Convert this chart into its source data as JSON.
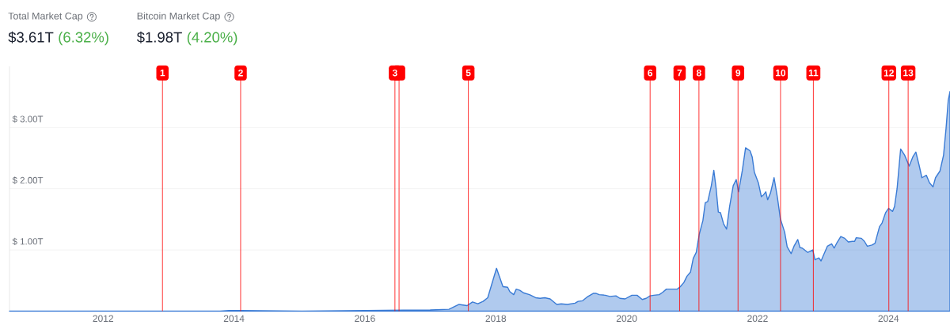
{
  "chart_data": {
    "type": "area",
    "annotations": [
      "Total Market Cap",
      "$3.61T",
      "(6.32%)",
      "Bitcoin Market Cap",
      "$1.98T",
      "(4.20%)"
    ],
    "x": [
      "2010-07-28",
      "2013-10-15",
      "2013-12-04",
      "2014-02-10",
      "2015-01-15",
      "2016-01-01",
      "2016-12-31",
      "2017-04-15",
      "2017-06-10",
      "2017-07-25",
      "2017-08-24",
      "2017-09-23",
      "2017-10-22",
      "2017-11-17",
      "2018-01-05",
      "2018-02-10",
      "2018-03-08",
      "2018-03-20",
      "2018-04-11",
      "2018-04-25",
      "2018-05-15",
      "2018-06-04",
      "2018-07-08",
      "2018-08-11",
      "2018-09-05",
      "2018-10-01",
      "2018-10-31",
      "2018-12-07",
      "2019-01-01",
      "2019-02-04",
      "2019-03-19",
      "2019-04-05",
      "2019-04-30",
      "2019-05-25",
      "2019-06-28",
      "2019-07-15",
      "2019-08-01",
      "2019-09-04",
      "2019-09-29",
      "2019-11-02",
      "2019-11-24",
      "2019-12-23",
      "2020-01-30",
      "2020-02-28",
      "2020-03-28",
      "2020-04-19",
      "2020-05-11",
      "2020-05-31",
      "2020-07-01",
      "2020-07-21",
      "2020-08-10",
      "2020-09-09",
      "2020-10-10",
      "2020-10-27",
      "2020-11-16",
      "2020-12-03",
      "2020-12-23",
      "2021-01-07",
      "2021-01-24",
      "2021-02-10",
      "2021-03-02",
      "2021-03-15",
      "2021-03-29",
      "2021-04-18",
      "2021-05-02",
      "2021-05-15",
      "2021-05-27",
      "2021-06-08",
      "2021-06-25",
      "2021-07-12",
      "2021-07-29",
      "2021-08-18",
      "2021-09-04",
      "2021-09-17",
      "2021-10-08",
      "2021-10-26",
      "2021-11-20",
      "2021-12-02",
      "2021-12-14",
      "2022-01-05",
      "2022-01-22",
      "2022-02-03",
      "2022-02-16",
      "2022-02-26",
      "2022-03-14",
      "2022-04-03",
      "2022-04-22",
      "2022-05-08",
      "2022-06-01",
      "2022-06-15",
      "2022-07-07",
      "2022-07-23",
      "2022-08-13",
      "2022-08-25",
      "2022-09-07",
      "2022-10-08",
      "2022-11-05",
      "2022-11-17",
      "2022-12-09",
      "2022-12-21",
      "2023-01-03",
      "2023-01-25",
      "2023-02-18",
      "2023-03-04",
      "2023-03-20",
      "2023-04-10",
      "2023-05-02",
      "2023-05-22",
      "2023-06-13",
      "2023-06-26",
      "2023-07-05",
      "2023-08-03",
      "2023-08-20",
      "2023-09-05",
      "2023-10-01",
      "2023-10-18",
      "2023-11-12",
      "2023-11-26",
      "2023-12-16",
      "2024-01-02",
      "2024-01-24",
      "2024-02-04",
      "2024-02-18",
      "2024-03-09",
      "2024-03-31",
      "2024-04-26",
      "2024-05-16",
      "2024-06-02",
      "2024-06-19",
      "2024-07-06",
      "2024-07-31",
      "2024-08-17",
      "2024-09-06",
      "2024-09-20",
      "2024-10-15",
      "2024-11-04",
      "2024-11-18",
      "2024-11-30",
      "2024-12-10"
    ],
    "series": [
      {
        "color": "#3a7bd5",
        "values": [
          0,
          0,
          0.01,
          0.01,
          0,
          0.01,
          0.02,
          0.03,
          0.11,
          0.09,
          0.15,
          0.12,
          0.16,
          0.22,
          0.7,
          0.4,
          0.39,
          0.32,
          0.27,
          0.36,
          0.34,
          0.3,
          0.27,
          0.22,
          0.21,
          0.22,
          0.2,
          0.11,
          0.12,
          0.11,
          0.13,
          0.16,
          0.17,
          0.23,
          0.29,
          0.29,
          0.27,
          0.26,
          0.24,
          0.25,
          0.21,
          0.2,
          0.26,
          0.26,
          0.19,
          0.21,
          0.25,
          0.26,
          0.27,
          0.31,
          0.36,
          0.36,
          0.36,
          0.4,
          0.47,
          0.57,
          0.64,
          0.86,
          0.96,
          1.26,
          1.48,
          1.77,
          1.79,
          2.05,
          2.3,
          2.0,
          1.62,
          1.61,
          1.43,
          1.34,
          1.71,
          2.05,
          2.15,
          1.95,
          2.3,
          2.67,
          2.62,
          2.52,
          2.27,
          2.1,
          1.87,
          1.9,
          1.95,
          1.82,
          1.93,
          2.18,
          1.85,
          1.51,
          1.29,
          1.05,
          0.94,
          1.06,
          1.17,
          1.04,
          1.03,
          0.96,
          1.0,
          0.84,
          0.87,
          0.82,
          0.91,
          1.06,
          1.1,
          1.03,
          1.12,
          1.22,
          1.19,
          1.13,
          1.14,
          1.14,
          1.2,
          1.19,
          1.14,
          1.06,
          1.08,
          1.11,
          1.38,
          1.44,
          1.61,
          1.68,
          1.63,
          1.71,
          2.0,
          2.65,
          2.55,
          2.37,
          2.52,
          2.6,
          2.4,
          2.18,
          2.22,
          2.1,
          2.03,
          2.18,
          2.29,
          2.55,
          2.99,
          3.44,
          3.59
        ]
      }
    ],
    "xlim": [
      "2010-07-28",
      "2024-12-10"
    ],
    "xticks": [
      "2012",
      "2014",
      "2016",
      "2018",
      "2020",
      "2022",
      "2024"
    ],
    "ylim": [
      0,
      4
    ],
    "yticks": [
      {
        "value": 1,
        "label": "$ 1.00T"
      },
      {
        "value": 2,
        "label": "$ 2.00T"
      },
      {
        "value": 3,
        "label": "$ 3.00T"
      }
    ],
    "grid": "y",
    "ref_lines": [
      {
        "axis": "x",
        "value": "2012-11-28",
        "label": "1",
        "color": "#ff0000"
      },
      {
        "axis": "x",
        "value": "2014-02-07",
        "label": "2",
        "color": "#ff0000"
      },
      {
        "axis": "x",
        "value": "2016-06-17",
        "label": "3",
        "color": "#ff0000"
      },
      {
        "axis": "x",
        "value": "2016-07-10",
        "label": null,
        "color": "#ff0000"
      },
      {
        "axis": "x",
        "value": "2017-08-01",
        "label": "5",
        "color": "#ff0000"
      },
      {
        "axis": "x",
        "value": "2020-05-11",
        "label": "6",
        "color": "#ff0000"
      },
      {
        "axis": "x",
        "value": "2020-10-23",
        "label": "7",
        "color": "#ff0000"
      },
      {
        "axis": "x",
        "value": "2021-02-08",
        "label": "8",
        "color": "#ff0000"
      },
      {
        "axis": "x",
        "value": "2021-09-14",
        "label": "9",
        "color": "#ff0000"
      },
      {
        "axis": "x",
        "value": "2022-05-09",
        "label": "10",
        "color": "#ff0000"
      },
      {
        "axis": "x",
        "value": "2022-11-08",
        "label": "11",
        "color": "#ff0000"
      },
      {
        "axis": "x",
        "value": "2024-01-03",
        "label": "12",
        "color": "#ff0000"
      },
      {
        "axis": "x",
        "value": "2024-04-20",
        "label": "13",
        "color": "#ff0000"
      }
    ]
  }
}
